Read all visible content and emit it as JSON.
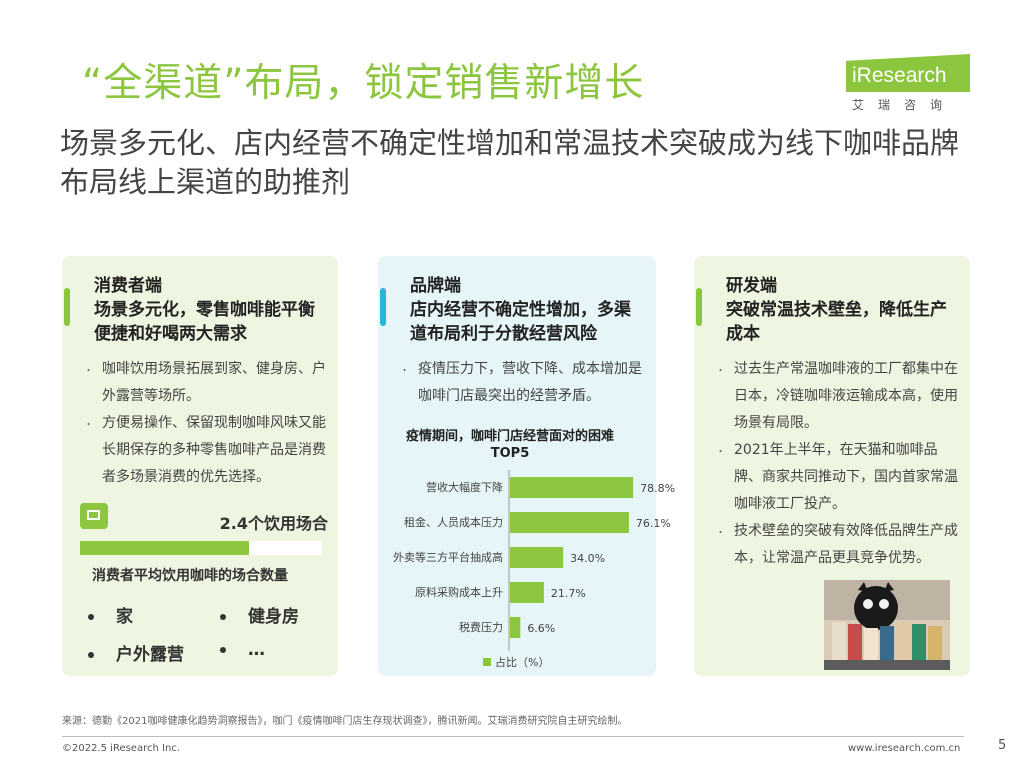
{
  "header": {
    "title": "“全渠道”布局，锁定销售新增长",
    "subtitle": "场景多元化、店内经营不确定性增加和常温技术突破成为线下咖啡品牌布局线上渠道的助推剂",
    "logo_text": "iResearch",
    "logo_sub": "艾瑞咨询"
  },
  "panels": [
    {
      "heading_line1": "消费者端",
      "heading_line2": "场景多元化，零售咖啡能平衡便捷和好喝两大需求",
      "bullets": [
        "咖啡饮用场景拓展到家、健身房、户外露营等场所。",
        "方便易操作、保留现制咖啡风味又能长期保存的多种零售咖啡产品是消费者多场景消费的优先选择。"
      ],
      "stat_label": "2.4个饮用场合",
      "stat_fraction": 0.7,
      "stat_caption": "消费者平均饮用咖啡的场合数量",
      "places": [
        "家",
        "健身房",
        "户外露营",
        "…"
      ]
    },
    {
      "heading_line1": "品牌端",
      "heading_line2": "店内经营不确定性增加，多渠道布局利于分散经营风险",
      "bullets": [
        "疫情压力下，营收下降、成本增加是咖啡门店最突出的经营矛盾。"
      ],
      "chart_title": "疫情期间，咖啡门店经营面对的困难TOP5"
    },
    {
      "heading_line1": "研发端",
      "heading_line2": "突破常温技术壁垒，降低生产成本",
      "bullets": [
        "过去生产常温咖啡液的工厂都集中在日本，冷链咖啡液运输成本高，使用场景有局限。",
        "2021年上半年，在天猫和咖啡品牌、商家共同推动下，国内首家常温咖啡液工厂投产。",
        "技术壁垒的突破有效降低品牌生产成本，让常温产品更具竞争优势。"
      ]
    }
  ],
  "chart_data": {
    "type": "bar",
    "orientation": "horizontal",
    "title": "疫情期间，咖啡门店经营面对的困难TOP5",
    "categories": [
      "营收大幅度下降",
      "租金、人员成本压力",
      "外卖等三方平台抽成高",
      "原料采购成本上升",
      "税费压力"
    ],
    "series": [
      {
        "name": "占比（%）",
        "values": [
          78.8,
          76.1,
          34.0,
          21.7,
          6.6
        ]
      }
    ],
    "data_labels": [
      "78.8%",
      "76.1%",
      "34.0%",
      "21.7%",
      "6.6%"
    ],
    "xlim": [
      0,
      100
    ],
    "grid": false,
    "legend": "bottom",
    "colors": {
      "bar": "#8cc63f"
    }
  },
  "footer": {
    "source": "来源：德勤《2021咖啡健康化趋势洞察报告》，咖门《疫情咖啡门店生存现状调查》，腾讯新闻。艾瑞消费研究院自主研究绘制。",
    "copyright": "©2022.5 iResearch Inc.",
    "site": "www.iresearch.com.cn",
    "page": "5"
  },
  "colors": {
    "accent_green": "#8cc63f",
    "accent_blue": "#29b6d6"
  }
}
